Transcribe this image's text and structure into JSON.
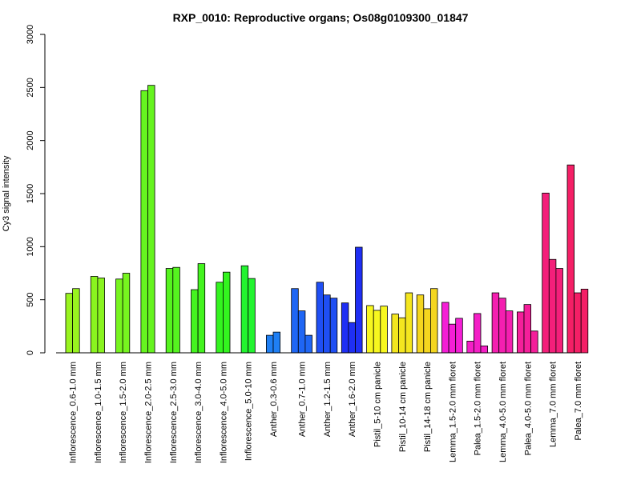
{
  "chart_data": {
    "type": "bar",
    "title": "RXP_0010: Reproductive organs; Os08g0109300_01847",
    "ylabel": "Cy3 signal intensity",
    "xlabel": "",
    "ylim": [
      0,
      3000
    ],
    "yticks": [
      0,
      500,
      1000,
      1500,
      2000,
      2500,
      3000
    ],
    "grid": false,
    "groups": [
      {
        "label": "Inflorescence_0.6-1.0 mm",
        "color": "#99f41f",
        "values": [
          560,
          605
        ]
      },
      {
        "label": "Inflorescence_1.0-1.5 mm",
        "color": "#8af41f",
        "values": [
          720,
          705
        ]
      },
      {
        "label": "Inflorescence_1.5-2.0 mm",
        "color": "#77f41f",
        "values": [
          695,
          750
        ]
      },
      {
        "label": "Inflorescence_2.0-2.5 mm",
        "color": "#66f41f",
        "values": [
          2470,
          2520
        ]
      },
      {
        "label": "Inflorescence_2.5-3.0 mm",
        "color": "#55f41f",
        "values": [
          795,
          805
        ]
      },
      {
        "label": "Inflorescence_3.0-4.0 mm",
        "color": "#44f41f",
        "values": [
          595,
          840
        ]
      },
      {
        "label": "Inflorescence_4.0-5.0 mm",
        "color": "#33f41f",
        "values": [
          665,
          760
        ]
      },
      {
        "label": "Inflorescence_5.0-10 mm",
        "color": "#22f42f",
        "values": [
          820,
          700
        ]
      },
      {
        "label": "Anther_0.3-0.6 mm",
        "color": "#1f7ff4",
        "values": [
          165,
          195
        ]
      },
      {
        "label": "Anther_0.7-1.0 mm",
        "color": "#1f66f4",
        "values": [
          605,
          395,
          165
        ]
      },
      {
        "label": "Anther_1.2-1.5 mm",
        "color": "#1f4ff4",
        "values": [
          665,
          545,
          515
        ]
      },
      {
        "label": "Anther_1.6-2.0 mm",
        "color": "#1f2ff4",
        "values": [
          470,
          285,
          995
        ]
      },
      {
        "label": "Pistil_5-10 cm panicle",
        "color": "#f7f71f",
        "values": [
          445,
          400,
          440
        ]
      },
      {
        "label": "Pistil_10-14 cm panicle",
        "color": "#f4e61f",
        "values": [
          365,
          330,
          565
        ]
      },
      {
        "label": "Pistil_14-18 cm panicle",
        "color": "#f4d61f",
        "values": [
          545,
          415,
          605
        ]
      },
      {
        "label": "Lemma_1.5-2.0 mm floret",
        "color": "#f41fd6",
        "values": [
          475,
          270,
          325
        ]
      },
      {
        "label": "Palea_1.5-2.0 mm floret",
        "color": "#f41fc6",
        "values": [
          110,
          370,
          65
        ]
      },
      {
        "label": "Lemma_4.0-5.0 mm floret",
        "color": "#f41fb0",
        "values": [
          565,
          515,
          395
        ]
      },
      {
        "label": "Palea_4.0-5.0 mm floret",
        "color": "#f41f9a",
        "values": [
          385,
          455,
          205
        ]
      },
      {
        "label": "Lemma_7.0 mm floret",
        "color": "#f41f7a",
        "values": [
          1505,
          880,
          795
        ]
      },
      {
        "label": "Palea_7.0 mm floret",
        "color": "#f41f66",
        "values": [
          1770,
          565,
          600
        ]
      }
    ]
  }
}
